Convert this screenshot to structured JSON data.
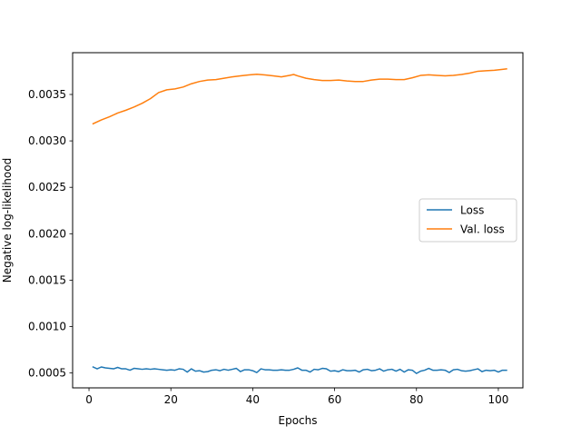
{
  "chart_data": {
    "type": "line",
    "title": "",
    "xlabel": "Epochs",
    "ylabel": "Negative log-likelihood",
    "xlim": [
      -4,
      106
    ],
    "ylim": [
      0.00034,
      0.00395
    ],
    "xticks": [
      0,
      20,
      40,
      60,
      80,
      100
    ],
    "xtick_labels": [
      "0",
      "20",
      "40",
      "60",
      "80",
      "100"
    ],
    "yticks": [
      0.0005,
      0.001,
      0.0015,
      0.002,
      0.0025,
      0.003,
      0.0035
    ],
    "ytick_labels": [
      "0.0005",
      "0.0010",
      "0.0015",
      "0.0020",
      "0.0025",
      "0.0030",
      "0.0035"
    ],
    "legend_position": "center-right",
    "grid": false,
    "series": [
      {
        "name": "Loss",
        "color": "#1f77b4",
        "x": [
          1,
          2,
          3,
          4,
          5,
          6,
          7,
          8,
          9,
          10,
          11,
          12,
          13,
          14,
          15,
          16,
          17,
          18,
          19,
          20,
          21,
          22,
          23,
          24,
          25,
          26,
          27,
          28,
          29,
          30,
          31,
          32,
          33,
          34,
          35,
          36,
          37,
          38,
          39,
          40,
          41,
          42,
          43,
          44,
          45,
          46,
          47,
          48,
          49,
          50,
          51,
          52,
          53,
          54,
          55,
          56,
          57,
          58,
          59,
          60,
          61,
          62,
          63,
          64,
          65,
          66,
          67,
          68,
          69,
          70,
          71,
          72,
          73,
          74,
          75,
          76,
          77,
          78,
          79,
          80,
          81,
          82,
          83,
          84,
          85,
          86,
          87,
          88,
          89,
          90,
          91,
          92,
          93,
          94,
          95,
          96,
          97,
          98,
          99,
          100,
          101,
          102
        ],
        "y": [
          0.000565,
          0.000545,
          0.000565,
          0.000555,
          0.00055,
          0.000545,
          0.00056,
          0.000545,
          0.000545,
          0.00053,
          0.00055,
          0.000545,
          0.00054,
          0.000545,
          0.00054,
          0.000545,
          0.00054,
          0.000535,
          0.00053,
          0.000535,
          0.00053,
          0.000545,
          0.00054,
          0.00051,
          0.000545,
          0.00052,
          0.000525,
          0.00051,
          0.000515,
          0.00053,
          0.000535,
          0.000525,
          0.00054,
          0.00053,
          0.00054,
          0.00055,
          0.000515,
          0.000535,
          0.000535,
          0.000525,
          0.000505,
          0.000545,
          0.000535,
          0.000535,
          0.00053,
          0.00053,
          0.000535,
          0.00053,
          0.00053,
          0.00054,
          0.000555,
          0.00053,
          0.00053,
          0.00051,
          0.00054,
          0.000535,
          0.00055,
          0.000545,
          0.00052,
          0.000525,
          0.000515,
          0.000535,
          0.000525,
          0.000525,
          0.00053,
          0.00051,
          0.000535,
          0.00054,
          0.000525,
          0.00053,
          0.000545,
          0.00052,
          0.000535,
          0.00054,
          0.00052,
          0.00054,
          0.00051,
          0.000535,
          0.00053,
          0.000495,
          0.00052,
          0.00053,
          0.00055,
          0.00053,
          0.00053,
          0.000535,
          0.00053,
          0.000505,
          0.000535,
          0.00054,
          0.000525,
          0.00052,
          0.000525,
          0.000535,
          0.000545,
          0.000515,
          0.00053,
          0.000525,
          0.00053,
          0.00051,
          0.00053,
          0.00053
        ]
      },
      {
        "name": "Val. loss",
        "color": "#ff7f0e",
        "x": [
          1,
          3,
          5,
          7,
          9,
          11,
          13,
          15,
          17,
          19,
          21,
          23,
          25,
          27,
          29,
          31,
          33,
          35,
          37,
          39,
          41,
          43,
          45,
          47,
          49,
          50,
          51,
          53,
          55,
          57,
          59,
          61,
          63,
          65,
          67,
          69,
          71,
          73,
          75,
          77,
          79,
          81,
          83,
          85,
          87,
          89,
          91,
          93,
          95,
          97,
          99,
          101,
          102
        ],
        "y": [
          0.003185,
          0.003225,
          0.00326,
          0.0033,
          0.00333,
          0.003365,
          0.003405,
          0.003455,
          0.00352,
          0.00355,
          0.00356,
          0.00358,
          0.003615,
          0.00364,
          0.003655,
          0.00366,
          0.003675,
          0.00369,
          0.0037,
          0.00371,
          0.003718,
          0.00371,
          0.0037,
          0.00369,
          0.003705,
          0.003715,
          0.0037,
          0.003675,
          0.00366,
          0.00365,
          0.00365,
          0.003655,
          0.003645,
          0.00364,
          0.00364,
          0.003655,
          0.003665,
          0.003665,
          0.00366,
          0.00366,
          0.00368,
          0.003705,
          0.003712,
          0.003705,
          0.0037,
          0.003705,
          0.003715,
          0.00373,
          0.00375,
          0.003755,
          0.00376,
          0.00377,
          0.003775
        ]
      }
    ]
  }
}
